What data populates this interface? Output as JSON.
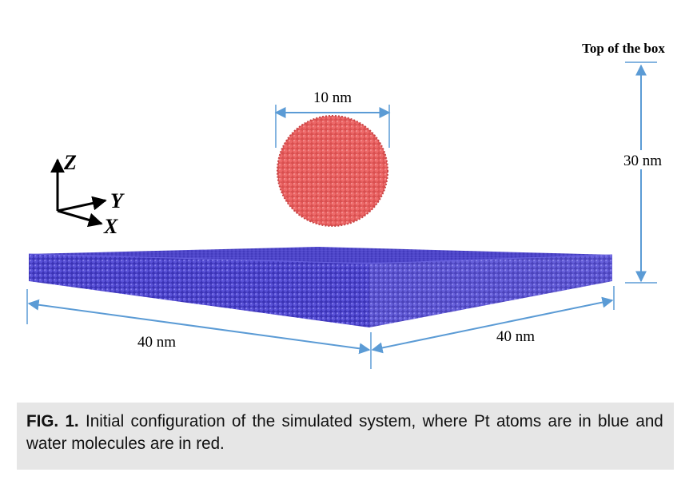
{
  "figure": {
    "top_label": "Top of the box",
    "height_label": "30 nm",
    "droplet_label": "10 nm",
    "left_width_label": "40 nm",
    "right_width_label": "40 nm",
    "axes": {
      "z": "Z",
      "y": "Y",
      "x": "X"
    },
    "colors": {
      "arrow": "#5b9bd5",
      "pt_atoms": "#4a3fc0",
      "water": "#e05b5b"
    }
  },
  "caption": {
    "fig_number": "FIG. 1.",
    "text": " Initial configuration of the simulated system, where Pt atoms are in blue and water molecules are in red."
  }
}
